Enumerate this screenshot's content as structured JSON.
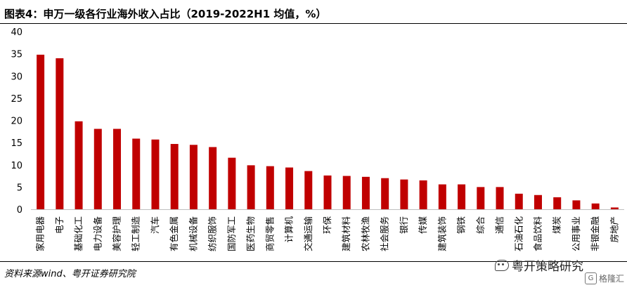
{
  "title": "图表4：申万一级各行业海外收入占比（2019-2022H1 均值，%）",
  "source": "资料来源wind、粤开证券研究院",
  "watermark": "粤开策略研究",
  "logo_text": "格隆汇",
  "colors": {
    "bar": "#c00000",
    "axis": "#bfbfbf",
    "text": "#000000"
  },
  "chart_data": {
    "type": "bar",
    "title": "图表4：申万一级各行业海外收入占比（2019-2022H1 均值，%）",
    "xlabel": "",
    "ylabel": "",
    "ylim": [
      0,
      40
    ],
    "yticks": [
      0,
      5,
      10,
      15,
      20,
      25,
      30,
      35,
      40
    ],
    "grid": false,
    "legend": "none",
    "categories": [
      "家用电器",
      "电子",
      "基础化工",
      "电力设备",
      "美容护理",
      "轻工制造",
      "汽车",
      "有色金属",
      "机械设备",
      "纺织服饰",
      "国防军工",
      "医药生物",
      "商贸零售",
      "计算机",
      "交通运输",
      "环保",
      "建筑材料",
      "农林牧渔",
      "社会服务",
      "银行",
      "传媒",
      "建筑装饰",
      "钢铁",
      "综合",
      "通信",
      "石油石化",
      "食品饮料",
      "煤炭",
      "公用事业",
      "非银金融",
      "房地产"
    ],
    "values": [
      34.8,
      34.0,
      19.8,
      18.1,
      18.1,
      15.9,
      15.7,
      14.7,
      14.5,
      14.0,
      11.6,
      9.9,
      9.7,
      9.4,
      8.6,
      7.6,
      7.5,
      7.3,
      7.0,
      6.7,
      6.5,
      5.6,
      5.6,
      5.0,
      5.0,
      3.5,
      3.2,
      2.7,
      2.0,
      1.3,
      0.4
    ]
  }
}
